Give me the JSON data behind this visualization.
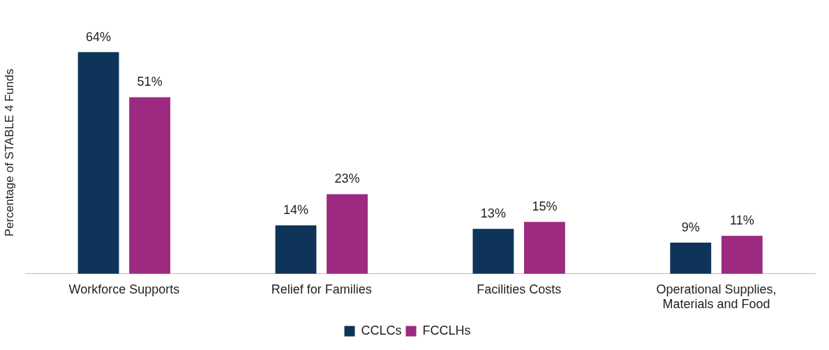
{
  "chart_data": {
    "type": "bar",
    "ylabel": "Percentage of STABLE 4 Funds",
    "categories": [
      "Workforce Supports",
      "Relief for Families",
      "Facilities Costs",
      "Operational Supplies, Materials and Food"
    ],
    "series": [
      {
        "name": "CCLCs",
        "color": "#0e3559",
        "values": [
          64,
          14,
          13,
          9
        ],
        "value_labels": [
          "64%",
          "14%",
          "13%",
          "9%"
        ]
      },
      {
        "name": "FCCLHs",
        "color": "#9b2a80",
        "values": [
          51,
          23,
          15,
          11
        ],
        "value_labels": [
          "51%",
          "23%",
          "15%",
          "11%"
        ]
      }
    ],
    "legend": "bottom",
    "grid": false
  }
}
